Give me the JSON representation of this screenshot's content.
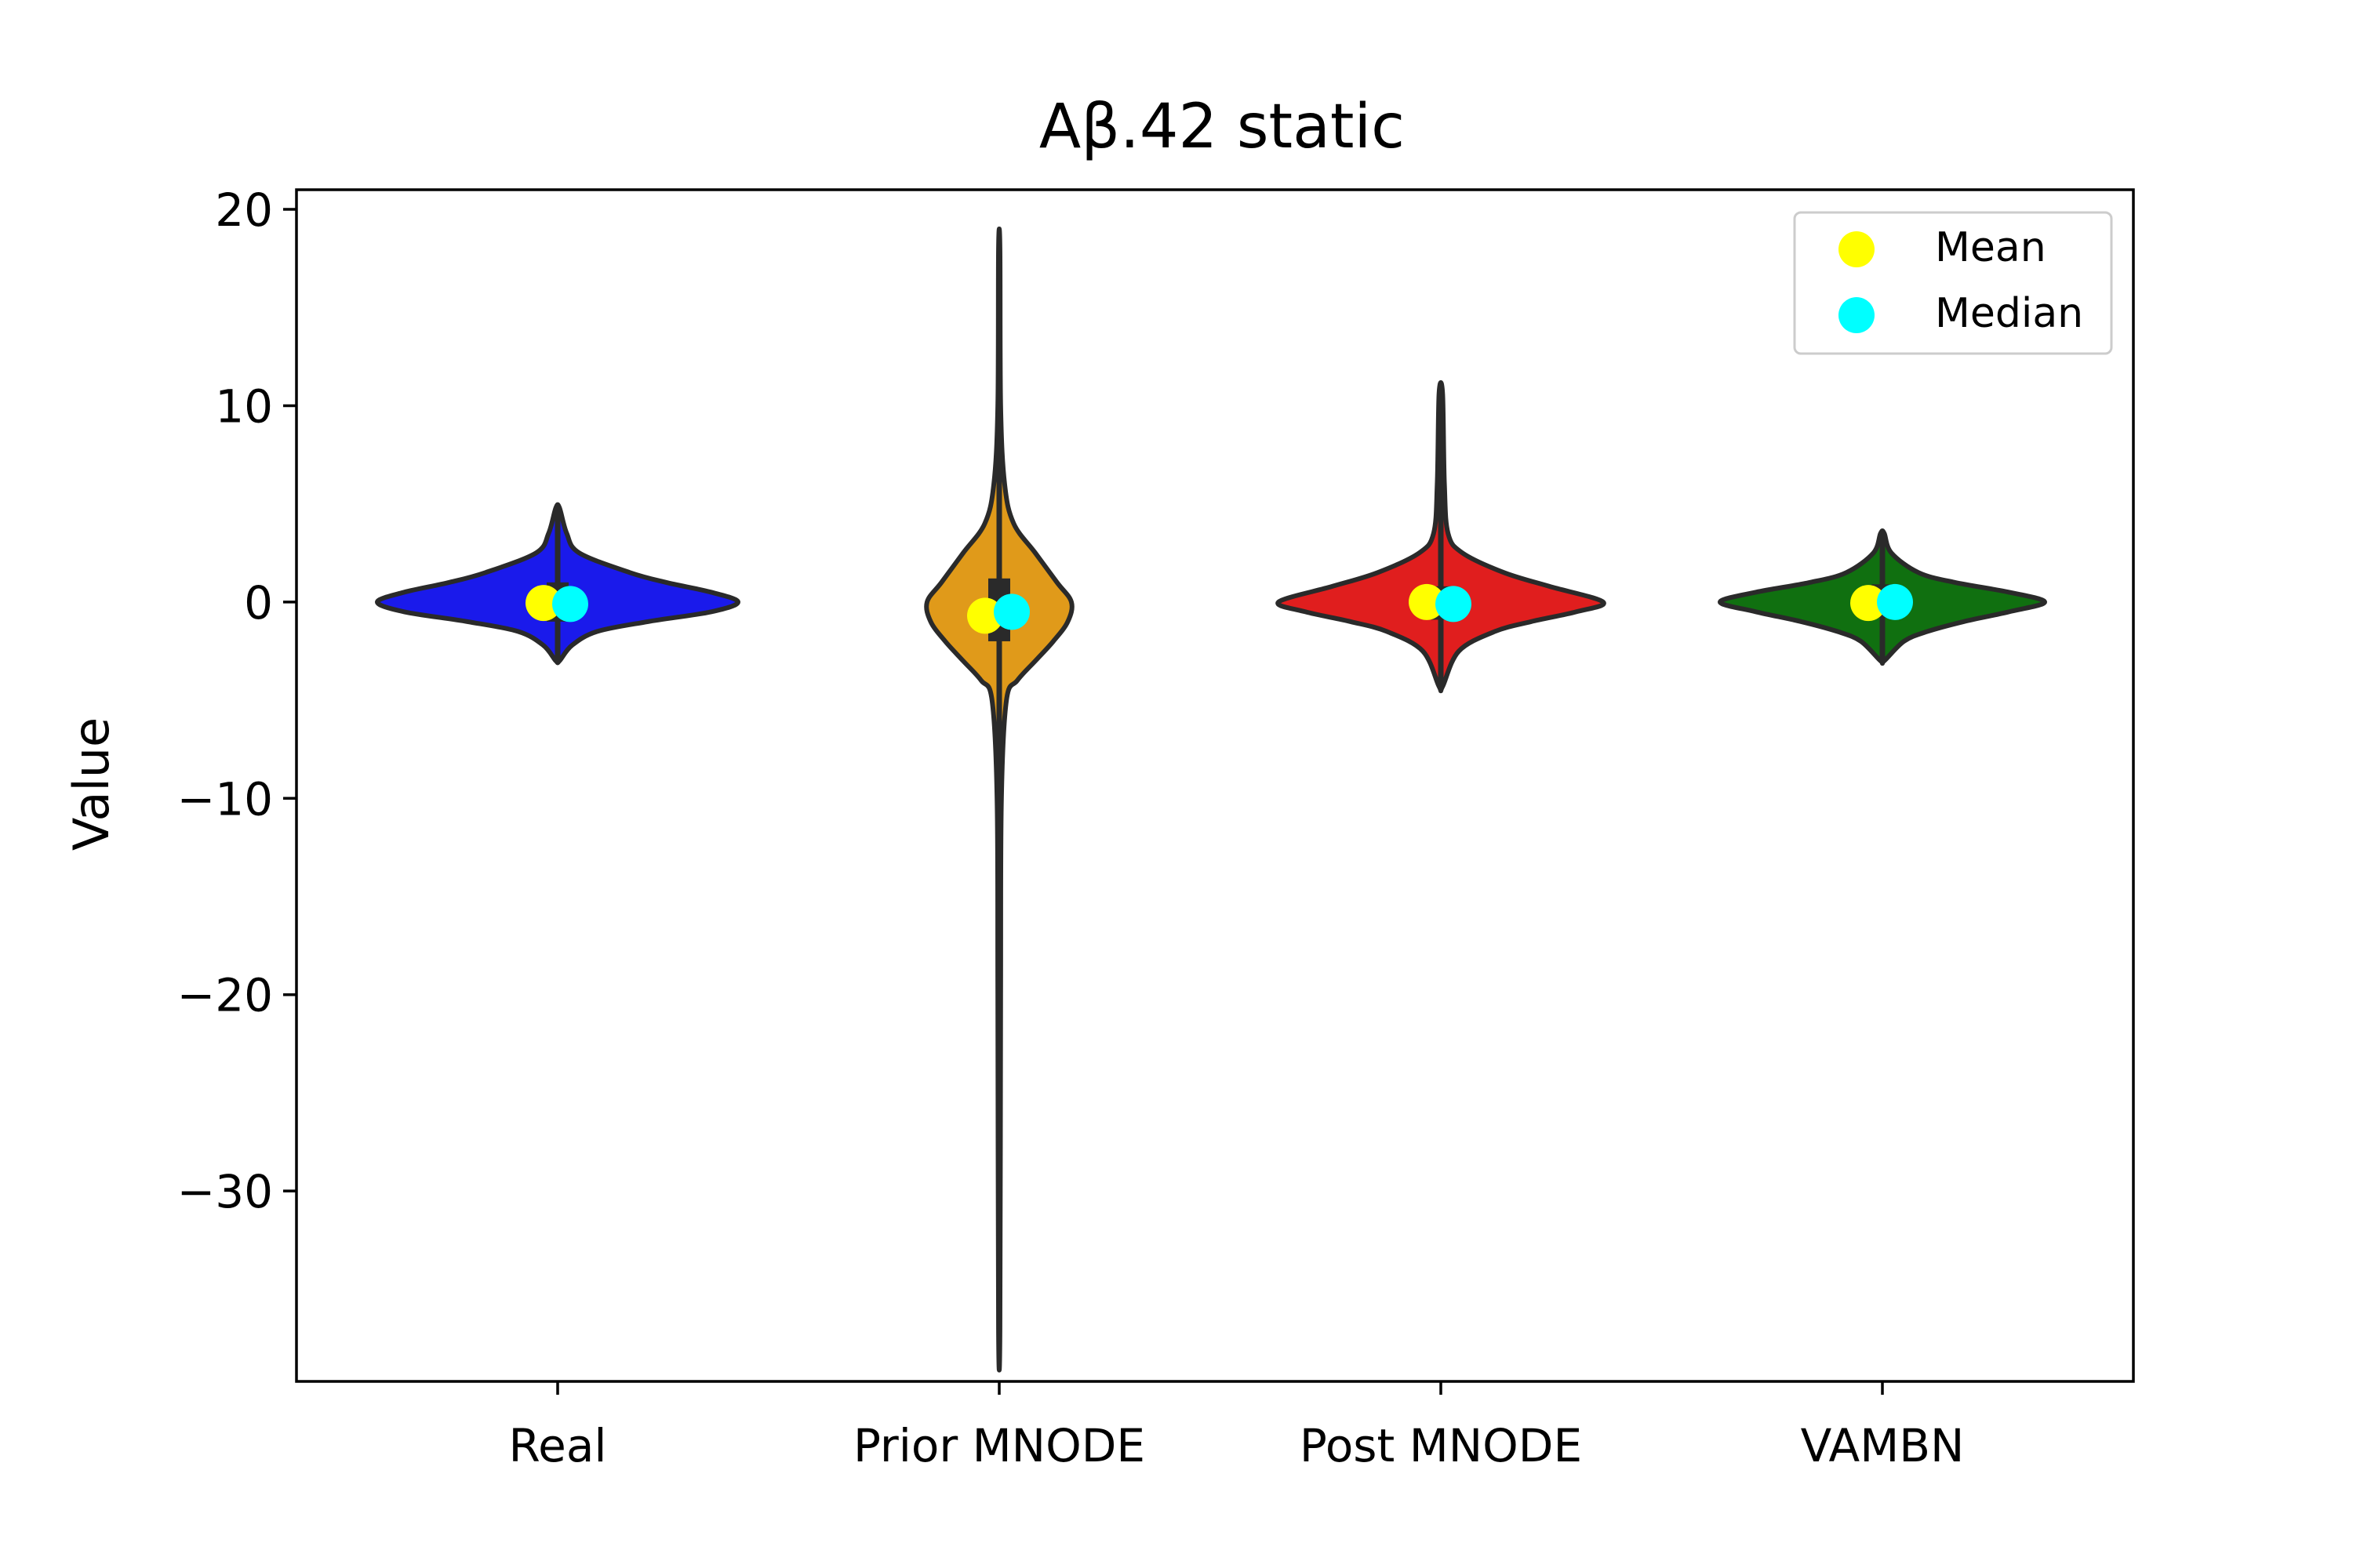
{
  "chart_data": {
    "type": "violin",
    "title": "Aβ.42 static",
    "xlabel": "",
    "ylabel": "Value",
    "ylim": [
      -39.7,
      21.0
    ],
    "yticks": [
      20,
      10,
      0,
      -10,
      -20,
      -30
    ],
    "ytick_labels": [
      "20",
      "10",
      "0",
      "−10",
      "−20",
      "−30"
    ],
    "grid": false,
    "legend_position": "top-right",
    "categories": [
      "Real",
      "Prior MNODE",
      "Post MNODE",
      "VAMBN"
    ],
    "series": [
      {
        "name": "Real",
        "color": "#1a1aeb",
        "min": -3.0,
        "max": 4.8,
        "q1": -1.0,
        "q3": 1.0,
        "mean": -0.05,
        "median": -0.1,
        "profile": [
          [
            4.8,
            0.01
          ],
          [
            3.5,
            0.05
          ],
          [
            2.5,
            0.12
          ],
          [
            1.5,
            0.4
          ],
          [
            1.0,
            0.6
          ],
          [
            0.5,
            0.85
          ],
          [
            0.0,
            1.0
          ],
          [
            -0.5,
            0.85
          ],
          [
            -1.0,
            0.5
          ],
          [
            -1.5,
            0.22
          ],
          [
            -2.2,
            0.08
          ],
          [
            -3.0,
            0.01
          ]
        ]
      },
      {
        "name": "Prior MNODE",
        "color": "#e09a1a",
        "min": -37.0,
        "max": 18.0,
        "q1": -2.0,
        "q3": 1.2,
        "mean": -0.7,
        "median": -0.5,
        "profile": [
          [
            18.0,
            0.004
          ],
          [
            10.0,
            0.008
          ],
          [
            6.0,
            0.03
          ],
          [
            4.0,
            0.08
          ],
          [
            2.5,
            0.2
          ],
          [
            1.0,
            0.32
          ],
          [
            0.0,
            0.4
          ],
          [
            -1.0,
            0.38
          ],
          [
            -2.0,
            0.3
          ],
          [
            -3.0,
            0.2
          ],
          [
            -4.0,
            0.1
          ],
          [
            -5.0,
            0.04
          ],
          [
            -10.0,
            0.012
          ],
          [
            -20.0,
            0.008
          ],
          [
            -37.0,
            0.004
          ]
        ]
      },
      {
        "name": "Post MNODE",
        "color": "#e01e1e",
        "min": -4.3,
        "max": 10.6,
        "q1": -0.9,
        "q3": 0.8,
        "mean": 0.0,
        "median": -0.1,
        "profile": [
          [
            10.6,
            0.01
          ],
          [
            6.0,
            0.02
          ],
          [
            3.5,
            0.04
          ],
          [
            2.5,
            0.12
          ],
          [
            1.5,
            0.35
          ],
          [
            0.8,
            0.6
          ],
          [
            0.0,
            0.9
          ],
          [
            -0.5,
            0.75
          ],
          [
            -1.0,
            0.5
          ],
          [
            -1.5,
            0.3
          ],
          [
            -2.5,
            0.1
          ],
          [
            -4.3,
            0.01
          ]
        ]
      },
      {
        "name": "VAMBN",
        "color": "#107010",
        "min": -3.0,
        "max": 3.5,
        "q1": -0.8,
        "q3": 0.9,
        "mean": -0.05,
        "median": 0.0,
        "profile": [
          [
            3.5,
            0.01
          ],
          [
            2.5,
            0.05
          ],
          [
            1.5,
            0.2
          ],
          [
            1.0,
            0.4
          ],
          [
            0.5,
            0.7
          ],
          [
            0.0,
            0.9
          ],
          [
            -0.5,
            0.7
          ],
          [
            -1.0,
            0.45
          ],
          [
            -1.5,
            0.25
          ],
          [
            -2.0,
            0.12
          ],
          [
            -3.0,
            0.01
          ]
        ]
      }
    ],
    "legend": [
      {
        "label": "Mean",
        "color": "#ffff00"
      },
      {
        "label": "Median",
        "color": "#00ffff"
      }
    ]
  }
}
